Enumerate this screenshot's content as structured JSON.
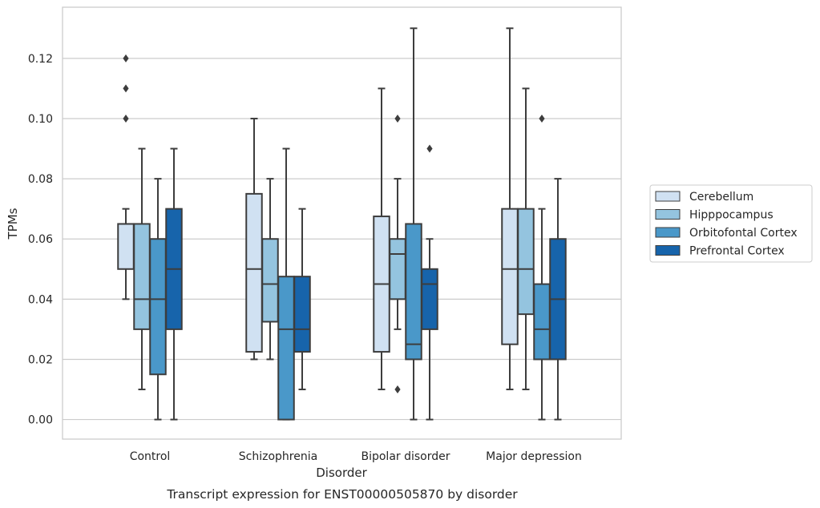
{
  "chart_data": {
    "type": "box",
    "xlabel": "Disorder",
    "ylabel": "TPMs",
    "caption": "Transcript expression for ENST00000505870 by disorder",
    "ylim": [
      -0.0065,
      0.137
    ],
    "yticks": [
      0.0,
      0.02,
      0.04,
      0.06,
      0.08,
      0.1,
      0.12
    ],
    "ytick_labels": [
      "0.00",
      "0.02",
      "0.04",
      "0.06",
      "0.08",
      "0.10",
      "0.12"
    ],
    "grid": true,
    "legend_position": "right",
    "categories": [
      "Control",
      "Schizophrenia",
      "Bipolar disorder",
      "Major depression"
    ],
    "series": [
      {
        "name": "Cerebellum",
        "color": "#d0e1f2",
        "boxes": [
          {
            "whisker_low": 0.04,
            "q1": 0.05,
            "median": 0.065,
            "q3": 0.065,
            "whisker_high": 0.07,
            "outliers": [
              0.1,
              0.11,
              0.12
            ]
          },
          {
            "whisker_low": 0.02,
            "q1": 0.0225,
            "median": 0.05,
            "q3": 0.075,
            "whisker_high": 0.1,
            "outliers": []
          },
          {
            "whisker_low": 0.01,
            "q1": 0.0225,
            "median": 0.045,
            "q3": 0.0675,
            "whisker_high": 0.11,
            "outliers": []
          },
          {
            "whisker_low": 0.01,
            "q1": 0.025,
            "median": 0.05,
            "q3": 0.07,
            "whisker_high": 0.13,
            "outliers": []
          }
        ]
      },
      {
        "name": "Hipppocampus",
        "color": "#94c4df",
        "boxes": [
          {
            "whisker_low": 0.01,
            "q1": 0.03,
            "median": 0.04,
            "q3": 0.065,
            "whisker_high": 0.09,
            "outliers": []
          },
          {
            "whisker_low": 0.02,
            "q1": 0.0325,
            "median": 0.045,
            "q3": 0.06,
            "whisker_high": 0.08,
            "outliers": []
          },
          {
            "whisker_low": 0.03,
            "q1": 0.04,
            "median": 0.055,
            "q3": 0.06,
            "whisker_high": 0.08,
            "outliers": [
              0.01,
              0.1
            ]
          },
          {
            "whisker_low": 0.01,
            "q1": 0.035,
            "median": 0.05,
            "q3": 0.07,
            "whisker_high": 0.11,
            "outliers": []
          }
        ]
      },
      {
        "name": "Orbitofontal Cortex",
        "color": "#4a98c9",
        "boxes": [
          {
            "whisker_low": 0.0,
            "q1": 0.015,
            "median": 0.04,
            "q3": 0.06,
            "whisker_high": 0.08,
            "outliers": []
          },
          {
            "whisker_low": 0.0,
            "q1": 0.0,
            "median": 0.03,
            "q3": 0.0475,
            "whisker_high": 0.09,
            "outliers": []
          },
          {
            "whisker_low": 0.0,
            "q1": 0.02,
            "median": 0.025,
            "q3": 0.065,
            "whisker_high": 0.13,
            "outliers": []
          },
          {
            "whisker_low": 0.0,
            "q1": 0.02,
            "median": 0.03,
            "q3": 0.045,
            "whisker_high": 0.07,
            "outliers": [
              0.1
            ]
          }
        ]
      },
      {
        "name": "Prefrontal Cortex",
        "color": "#1764ab",
        "boxes": [
          {
            "whisker_low": 0.0,
            "q1": 0.03,
            "median": 0.05,
            "q3": 0.07,
            "whisker_high": 0.09,
            "outliers": []
          },
          {
            "whisker_low": 0.01,
            "q1": 0.0225,
            "median": 0.03,
            "q3": 0.0475,
            "whisker_high": 0.07,
            "outliers": []
          },
          {
            "whisker_low": 0.0,
            "q1": 0.03,
            "median": 0.045,
            "q3": 0.05,
            "whisker_high": 0.06,
            "outliers": [
              0.09
            ]
          },
          {
            "whisker_low": 0.0,
            "q1": 0.02,
            "median": 0.04,
            "q3": 0.06,
            "whisker_high": 0.08,
            "outliers": []
          }
        ]
      }
    ]
  }
}
